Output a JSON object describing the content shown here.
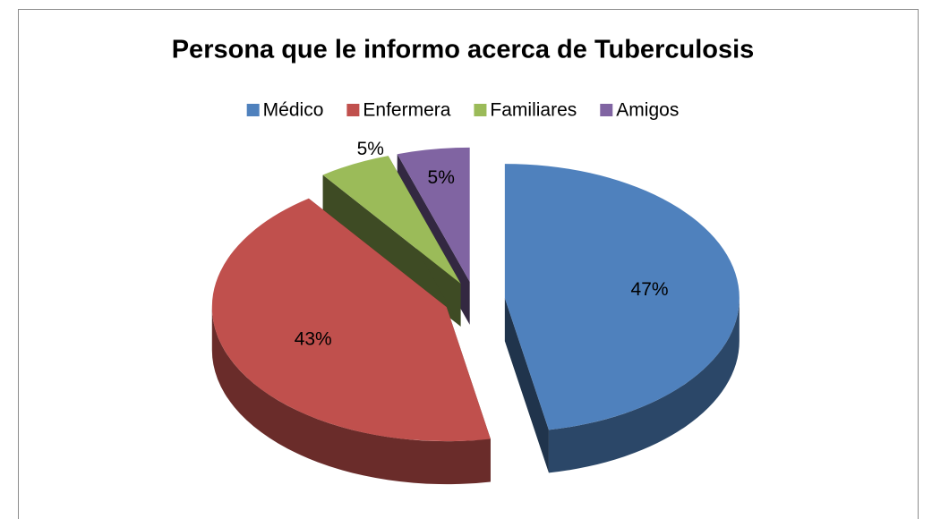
{
  "chart_data": {
    "type": "pie",
    "title": "Persona que le informo acerca de Tuberculosis",
    "categories": [
      "Médico",
      "Enfermera",
      "Familiares",
      "Amigos"
    ],
    "values": [
      47,
      43,
      5,
      5
    ],
    "value_labels": [
      "47%",
      "43%",
      "5%",
      "5%"
    ],
    "colors": [
      "#4f81bd",
      "#c0504d",
      "#9bbb59",
      "#8064a2"
    ],
    "legend": "top"
  }
}
